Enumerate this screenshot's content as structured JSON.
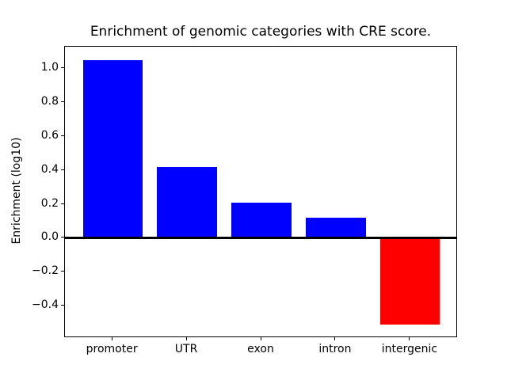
{
  "figure": {
    "background": "#ffffff",
    "text_color": "#000000"
  },
  "chart_data": {
    "type": "bar",
    "title": "Enrichment of genomic categories with CRE score.",
    "xlabel": "",
    "ylabel": "Enrichment (log10)",
    "categories": [
      "promoter",
      "UTR",
      "exon",
      "intron",
      "intergenic"
    ],
    "values": [
      1.05,
      0.42,
      0.21,
      0.12,
      -0.51
    ],
    "bar_colors": [
      "#0000ff",
      "#0000ff",
      "#0000ff",
      "#0000ff",
      "#ff0000"
    ],
    "positive_color": "#0000ff",
    "negative_color": "#ff0000",
    "bar_width": 0.8,
    "xlim": [
      -0.64,
      4.64
    ],
    "ylim": [
      -0.588,
      1.128
    ],
    "y_ticks": [
      {
        "value": 1.0,
        "label": "1.0"
      },
      {
        "value": 0.8,
        "label": "0.8"
      },
      {
        "value": 0.6,
        "label": "0.6"
      },
      {
        "value": 0.4,
        "label": "0.4"
      },
      {
        "value": 0.2,
        "label": "0.2"
      },
      {
        "value": 0.0,
        "label": "0.0"
      },
      {
        "value": -0.2,
        "label": "−0.2"
      },
      {
        "value": -0.4,
        "label": "−0.4"
      }
    ],
    "zero_line": {
      "value": 0.0,
      "color": "#000000"
    },
    "grid": false,
    "legend": null
  }
}
